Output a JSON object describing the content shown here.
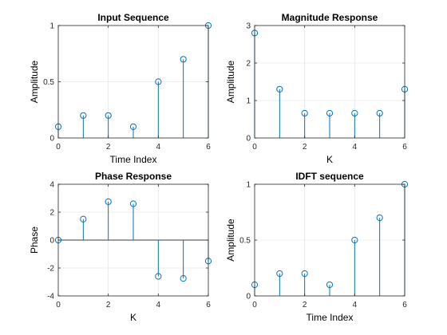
{
  "chart_data": [
    {
      "type": "stem",
      "title": "Input Sequence",
      "xlabel": "Time Index",
      "ylabel": "Amplitude",
      "x": [
        0,
        1,
        2,
        3,
        4,
        5,
        6
      ],
      "y": [
        0.1,
        0.2,
        0.2,
        0.1,
        0.5,
        0.7,
        1.0
      ],
      "xlim": [
        0,
        6
      ],
      "ylim": [
        0,
        1
      ],
      "xticks": [
        0,
        2,
        4,
        6
      ],
      "yticks": [
        0,
        0.5,
        1
      ],
      "ytick_labels": [
        "0",
        "0.5",
        "1"
      ],
      "grid": true,
      "baseline": false
    },
    {
      "type": "stem",
      "title": "Magnitude Response",
      "xlabel": "K",
      "ylabel": "Amplitude",
      "x": [
        0,
        1,
        2,
        3,
        4,
        5,
        6
      ],
      "y": [
        2.8,
        1.3,
        0.66,
        0.66,
        0.66,
        0.66,
        1.3
      ],
      "xlim": [
        0,
        6
      ],
      "ylim": [
        0,
        3
      ],
      "xticks": [
        0,
        2,
        4,
        6
      ],
      "yticks": [
        0,
        1,
        2,
        3
      ],
      "ytick_labels": [
        "0",
        "1",
        "2",
        "3"
      ],
      "grid": true,
      "baseline": false
    },
    {
      "type": "stem",
      "title": "Phase Response",
      "xlabel": "K",
      "ylabel": "Phase",
      "x": [
        0,
        1,
        2,
        3,
        4,
        5,
        6
      ],
      "y": [
        0,
        1.5,
        2.75,
        2.6,
        -2.6,
        -2.75,
        -1.5
      ],
      "xlim": [
        0,
        6
      ],
      "ylim": [
        -4,
        4
      ],
      "xticks": [
        0,
        2,
        4,
        6
      ],
      "yticks": [
        -4,
        -2,
        0,
        2,
        4
      ],
      "ytick_labels": [
        "-4",
        "-2",
        "0",
        "2",
        "4"
      ],
      "grid": true,
      "baseline": true
    },
    {
      "type": "stem",
      "title": "IDFT sequence",
      "xlabel": "Time Index",
      "ylabel": "Amplitude",
      "x": [
        0,
        1,
        2,
        3,
        4,
        5,
        6
      ],
      "y": [
        0.1,
        0.2,
        0.2,
        0.1,
        0.5,
        0.7,
        1.0
      ],
      "xlim": [
        0,
        6
      ],
      "ylim": [
        0,
        1
      ],
      "xticks": [
        0,
        2,
        4,
        6
      ],
      "yticks": [
        0,
        0.5,
        1
      ],
      "ytick_labels": [
        "0",
        "0.5",
        "1"
      ],
      "grid": true,
      "baseline": false
    }
  ],
  "colors": {
    "series": "#0072bd",
    "grid": "#dfdfdf",
    "axes": "#262626"
  }
}
